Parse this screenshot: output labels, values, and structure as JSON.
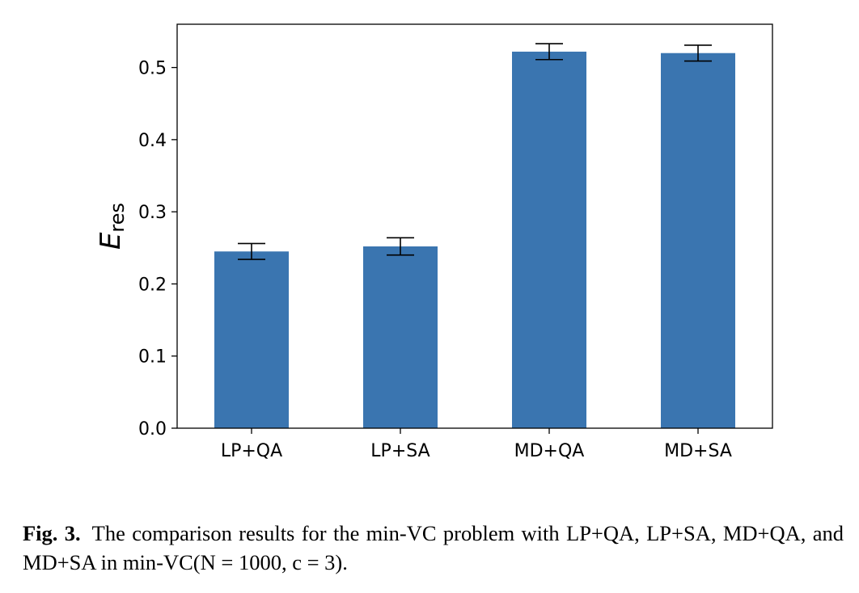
{
  "chart_data": {
    "type": "bar",
    "categories": [
      "LP+QA",
      "LP+SA",
      "MD+QA",
      "MD+SA"
    ],
    "values": [
      0.245,
      0.252,
      0.522,
      0.52
    ],
    "errors": [
      0.011,
      0.012,
      0.011,
      0.011
    ],
    "ylabel_main": "E",
    "ylabel_sub": "res",
    "ylim": [
      0.0,
      0.56
    ],
    "yticks": [
      "0.0",
      "0.1",
      "0.2",
      "0.3",
      "0.4",
      "0.5"
    ],
    "bar_color": "#3a75b0",
    "grid": false,
    "legend": "none"
  },
  "caption": {
    "label": "Fig. 3.",
    "text": "The comparison results for the min-VC problem with LP+QA, LP+SA, MD+QA, and MD+SA in min-VC(N = 1000, c = 3)."
  }
}
